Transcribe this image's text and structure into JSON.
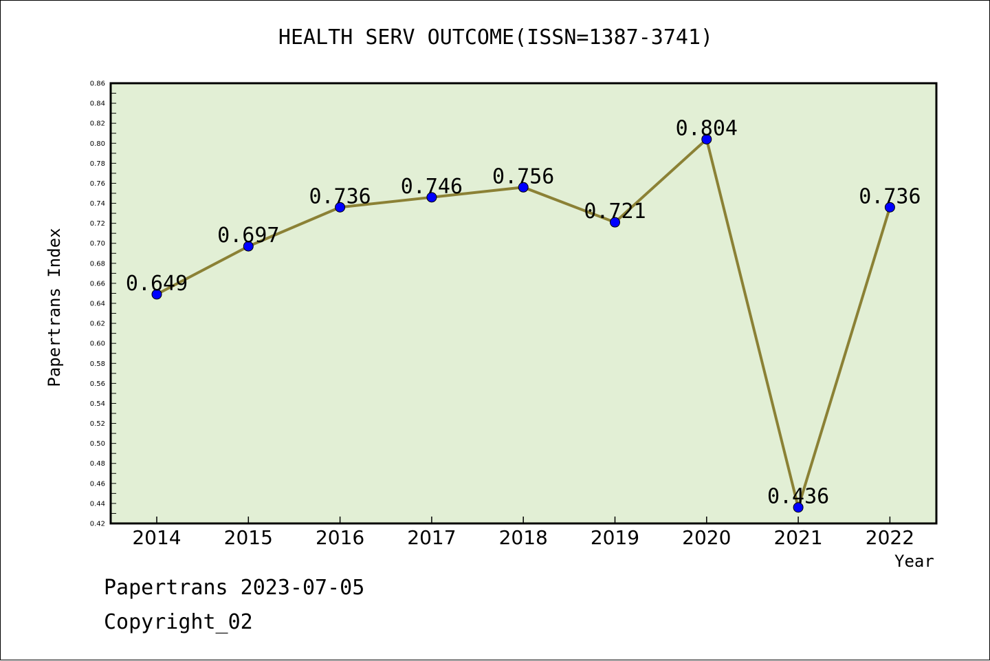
{
  "chart_data": {
    "type": "line",
    "title": "HEALTH SERV OUTCOME(ISSN=1387-3741)",
    "xlabel": "Year",
    "ylabel": "Papertrans Index",
    "categories": [
      "2014",
      "2015",
      "2016",
      "2017",
      "2018",
      "2019",
      "2020",
      "2021",
      "2022"
    ],
    "series": [
      {
        "values": [
          0.649,
          0.697,
          0.736,
          0.746,
          0.756,
          0.721,
          0.804,
          0.436,
          0.736
        ],
        "data_labels": [
          "0.649",
          "0.697",
          "0.736",
          "0.746",
          "0.756",
          "0.721",
          "0.804",
          "0.436",
          "0.736"
        ]
      }
    ],
    "ylim": [
      0.42,
      0.86
    ],
    "yticks": [
      "0.42",
      "0.44",
      "0.46",
      "0.48",
      "0.50",
      "0.52",
      "0.54",
      "0.56",
      "0.58",
      "0.60",
      "0.62",
      "0.64",
      "0.66",
      "0.68",
      "0.70",
      "0.72",
      "0.74",
      "0.76",
      "0.78",
      "0.80",
      "0.82",
      "0.84",
      "0.86"
    ],
    "grid": false,
    "legend": "none",
    "colors": {
      "plot_background": "#e2efd5",
      "line": "#8b8135",
      "marker": "#0000ff",
      "frame": "#000000"
    }
  },
  "footer": {
    "date_line": "Papertrans 2023-07-05",
    "copyright": "Copyright_02"
  }
}
